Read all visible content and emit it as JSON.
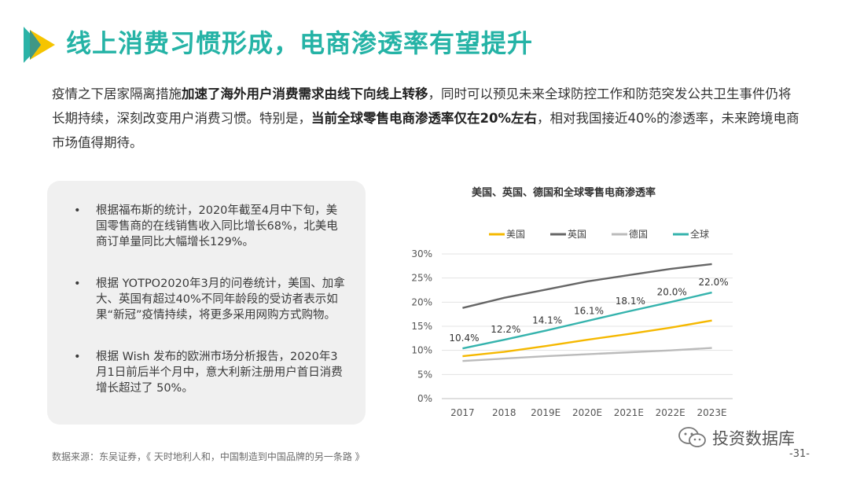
{
  "header": {
    "title": "线上消费习惯形成，电商渗透率有望提升"
  },
  "intro": {
    "p1": "疫情之下居家隔离措施",
    "b1": "加速了海外用户消费需求由线下向线上转移",
    "p2": "，同时可以预见未来全球防控工作和防范突发公共卫生事件仍将长期持续，深刻改变用户消费习惯。特别是，",
    "b2": "当前全球零售电商渗透率仅在20%左右",
    "p3": "，相对我国接近40%的渗透率，未来跨境电商市场值得期待。"
  },
  "bullets": [
    {
      "dot": "•",
      "text": "根据福布斯的统计，2020年截至4月中下旬，美国零售商的在线销售收入同比增长68%，北美电商订单量同比大幅增长129%。"
    },
    {
      "dot": "•",
      "text": "根据 YOTPO2020年3月的问卷统计，美国、加拿大、英国有超过40%不同年龄段的受访者表示如果“新冠”疫情持续，将更多采用网购方式购物。"
    },
    {
      "dot": "•",
      "text": "根据 Wish 发布的欧洲市场分析报告，2020年3月1日前后半个月中，意大利新注册用户首日消费增长超过了 50%。"
    }
  ],
  "chart_data": {
    "type": "line",
    "title": "美国、英国、德国和全球零售电商渗透率",
    "categories": [
      "2017",
      "2018",
      "2019E",
      "2020E",
      "2021E",
      "2022E",
      "2023E"
    ],
    "y_ticks": [
      "0%",
      "5%",
      "10%",
      "15%",
      "20%",
      "25%",
      "30%"
    ],
    "ylim": [
      0,
      30
    ],
    "legend_position": "top",
    "grid": true,
    "series": [
      {
        "name": "美国",
        "color": "#f5b800",
        "values": [
          8.8,
          9.7,
          10.9,
          12.2,
          13.4,
          14.7,
          16.2
        ],
        "labels": null
      },
      {
        "name": "英国",
        "color": "#666666",
        "values": [
          18.8,
          20.9,
          22.6,
          24.3,
          25.6,
          26.9,
          27.9
        ],
        "labels": null
      },
      {
        "name": "德国",
        "color": "#bbbbbb",
        "values": [
          7.8,
          8.3,
          8.8,
          9.2,
          9.6,
          10.0,
          10.5
        ],
        "labels": null
      },
      {
        "name": "全球",
        "color": "#35b3ad",
        "values": [
          10.4,
          12.2,
          14.1,
          16.1,
          18.1,
          20.0,
          22.0
        ],
        "labels": [
          "10.4%",
          "12.2%",
          "14.1%",
          "16.1%",
          "18.1%",
          "20.0%",
          "22.0%"
        ]
      }
    ]
  },
  "footer": {
    "source": "数据来源：东吴证券，《 天时地利人和，中国制造到中国品牌的另一条路 》",
    "brand": "投资数据库",
    "page": "-31-"
  },
  "colors": {
    "accent": "#25b3a6",
    "logo_teal": "#2bb3a7",
    "logo_yellow": "#f5c400"
  },
  "icons": {
    "logo": "play-triangle-logo",
    "brand": "wechat-icon"
  }
}
